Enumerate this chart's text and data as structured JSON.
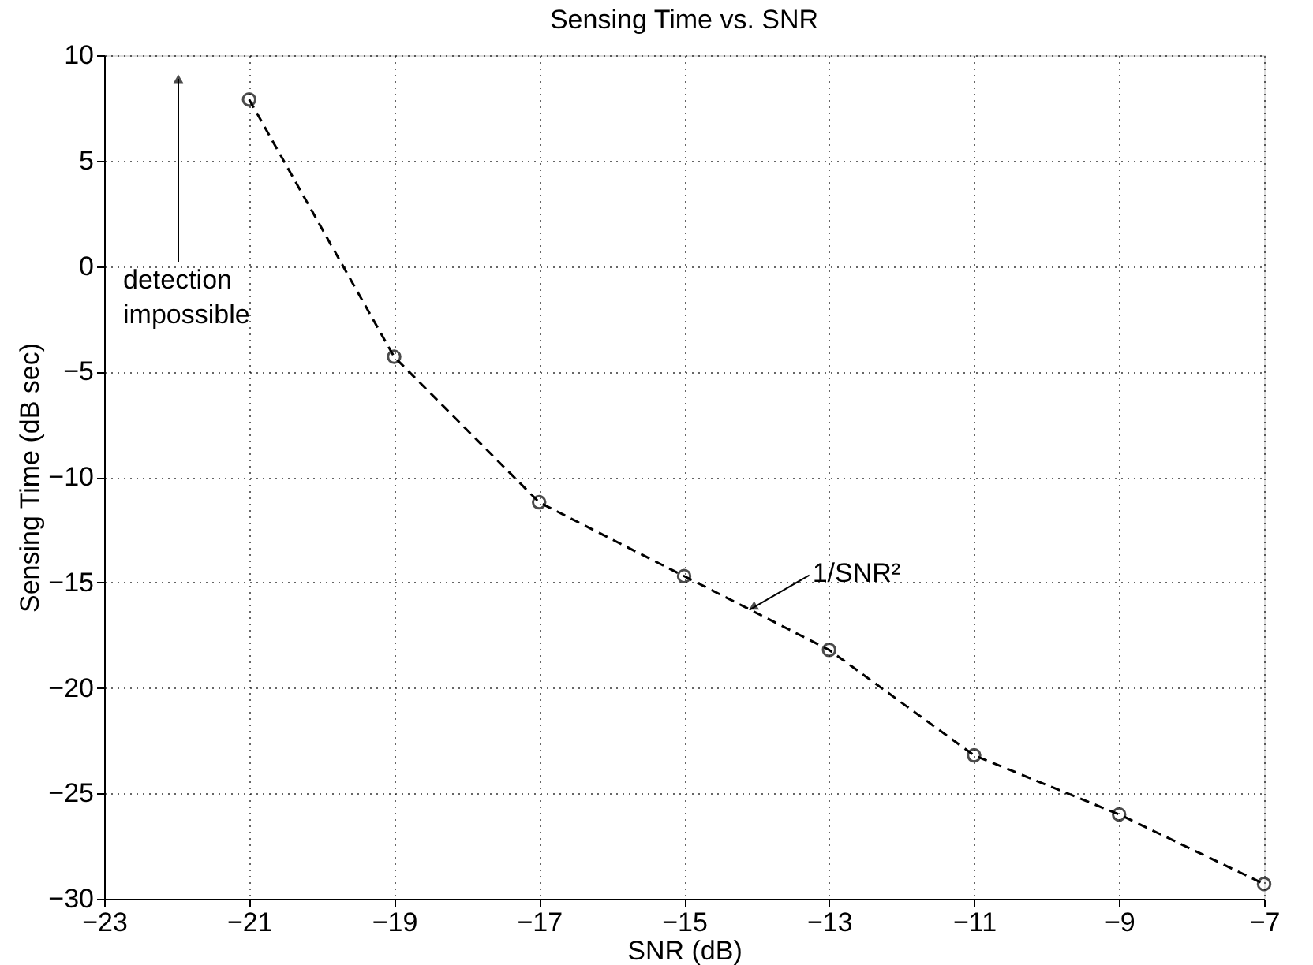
{
  "chart_data": {
    "type": "line",
    "title": "Sensing Time vs. SNR",
    "xlabel": "SNR (dB)",
    "ylabel": "Sensing Time (dB sec)",
    "x": [
      -21,
      -19,
      -17,
      -15,
      -13,
      -11,
      -9,
      -7
    ],
    "series": [
      {
        "color": "#000000",
        "values": [
          7.9,
          -4.3,
          -11.2,
          -14.7,
          -18.2,
          -23.2,
          -26.0,
          -29.3
        ]
      }
    ],
    "xlim": [
      -23,
      -7
    ],
    "xticks": [
      -23,
      -21,
      -19,
      -17,
      -15,
      -13,
      -11,
      -9,
      -7
    ],
    "ylim": [
      -30,
      10
    ],
    "yticks": [
      -30,
      -25,
      -20,
      -15,
      -10,
      -5,
      0,
      5,
      10
    ],
    "grid": true,
    "marker": "circle",
    "line_style": "dashed",
    "annotations": [
      "detection impossible",
      {
        "text": "1/SNR²",
        "x": -14.1,
        "y": -16.3
      }
    ]
  }
}
